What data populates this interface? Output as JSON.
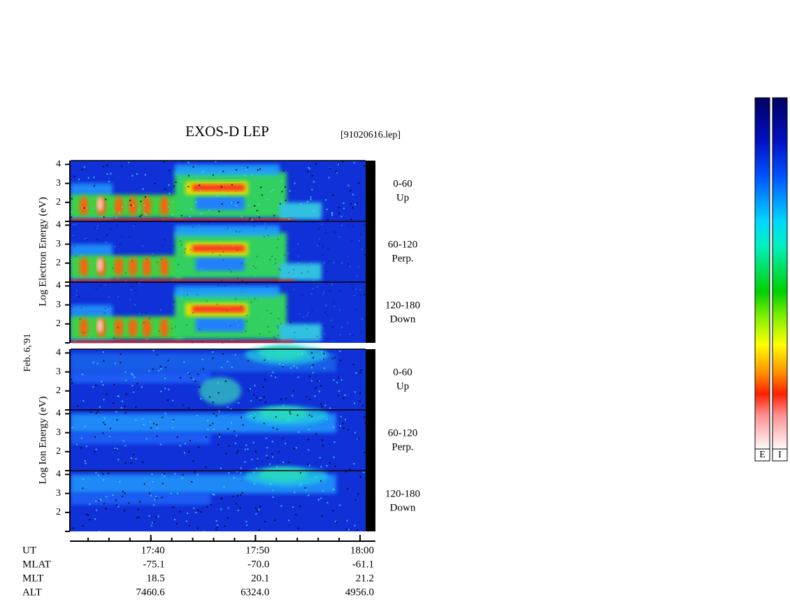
{
  "chart_data": {
    "type": "spectrogram",
    "title": "EXOS-D LEP",
    "file_label": "[91020616.lep]",
    "date_label": "Feb. 6,'91",
    "ylim": [
      1,
      4.2
    ],
    "yticks": [
      2,
      3,
      4
    ],
    "xlim": [
      1052.33,
      1081.47
    ],
    "xticks": [
      {
        "value": 1060,
        "label": "17:40"
      },
      {
        "value": 1070,
        "label": "17:50"
      },
      {
        "value": 1080,
        "label": "18:00"
      }
    ],
    "x_label": "UT",
    "groups": [
      {
        "ylabel": "Log  Electron  Energy (eV)",
        "species": "electron",
        "panels": [
          {
            "lines": [
              "0-60",
              "Up"
            ]
          },
          {
            "lines": [
              "60-120",
              "Perp."
            ]
          },
          {
            "lines": [
              "120-180",
              "Down"
            ]
          }
        ]
      },
      {
        "ylabel": "Log  Ion  Energy (eV)",
        "species": "ion",
        "panels": [
          {
            "lines": [
              "0-60",
              "Up"
            ]
          },
          {
            "lines": [
              "60-120",
              "Perp."
            ]
          },
          {
            "lines": [
              "120-180",
              "Down"
            ]
          }
        ]
      }
    ],
    "orbit_rows": [
      {
        "name": "MLAT",
        "values": [
          "-75.1",
          "-70.0",
          "-61.1"
        ]
      },
      {
        "name": "MLT",
        "values": [
          "18.5",
          "20.1",
          "21.2"
        ]
      },
      {
        "name": "ALT",
        "values": [
          "7460.6",
          "6324.0",
          "4956.0"
        ]
      }
    ],
    "colorbars": [
      "E",
      "I"
    ]
  }
}
